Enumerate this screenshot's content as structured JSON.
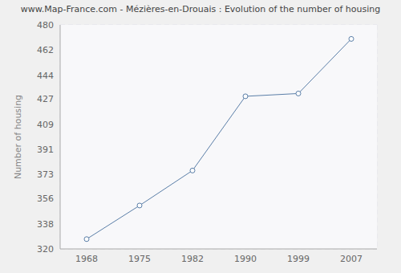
{
  "chart_data": {
    "type": "line",
    "title": "www.Map-France.com - Mézières-en-Drouais : Evolution of the number of housing",
    "y_label": "Number of housing",
    "categories": [
      "1968",
      "1975",
      "1982",
      "1990",
      "1999",
      "2007"
    ],
    "series": [
      {
        "name": "Number of housing",
        "color": "#5b7fa8",
        "values": [
          327,
          351,
          376,
          429,
          431,
          470
        ]
      }
    ],
    "ylim": [
      320,
      480
    ],
    "yticks": [
      320,
      338,
      356,
      373,
      391,
      409,
      427,
      444,
      462,
      480
    ],
    "grid": true,
    "marker": "circle"
  }
}
